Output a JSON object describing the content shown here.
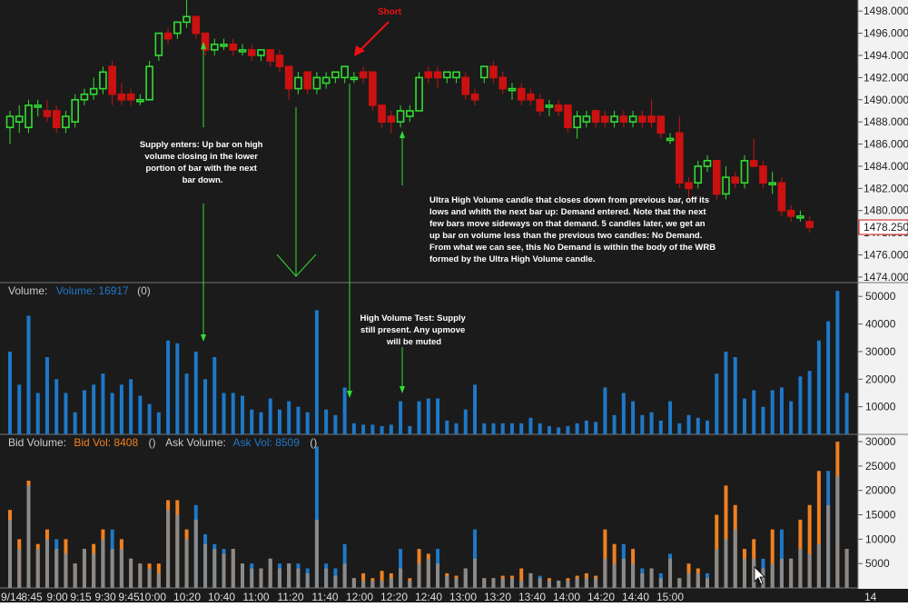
{
  "chart_data": [
    {
      "type": "candlestick",
      "name_text": "",
      "ylim": [
        1473.5,
        1499
      ],
      "y_ticks": [
        1474,
        1476,
        1478,
        1480,
        1482,
        1484,
        1486,
        1488,
        1490,
        1492,
        1494,
        1496,
        1498
      ],
      "y_tick_labels": [
        "1474.000",
        "1476.000",
        "1478.000",
        "1480.000",
        "1482.000",
        "1484.000",
        "1486.000",
        "1488.000",
        "1490.000",
        "1492.000",
        "1494.000",
        "1496.000",
        "1498.000"
      ],
      "last_price_label": "1478.250",
      "candles": [
        {
          "o": 1487.5,
          "h": 1489.0,
          "l": 1486.0,
          "c": 1488.5
        },
        {
          "o": 1488.0,
          "h": 1489.5,
          "l": 1487.0,
          "c": 1488.5
        },
        {
          "o": 1487.5,
          "h": 1490.0,
          "l": 1487.0,
          "c": 1489.5
        },
        {
          "o": 1489.5,
          "h": 1490.0,
          "l": 1488.5,
          "c": 1489.5
        },
        {
          "o": 1489.0,
          "h": 1490.0,
          "l": 1488.0,
          "c": 1488.5
        },
        {
          "o": 1489.0,
          "h": 1489.5,
          "l": 1487.0,
          "c": 1487.5
        },
        {
          "o": 1487.5,
          "h": 1489.0,
          "l": 1487.0,
          "c": 1488.5
        },
        {
          "o": 1488.0,
          "h": 1490.5,
          "l": 1487.5,
          "c": 1490.0
        },
        {
          "o": 1490.0,
          "h": 1491.0,
          "l": 1489.5,
          "c": 1490.5
        },
        {
          "o": 1490.5,
          "h": 1492.0,
          "l": 1490.0,
          "c": 1491.0
        },
        {
          "o": 1491.0,
          "h": 1493.0,
          "l": 1490.5,
          "c": 1492.5
        },
        {
          "o": 1493.0,
          "h": 1493.5,
          "l": 1489.5,
          "c": 1490.5
        },
        {
          "o": 1490.5,
          "h": 1491.5,
          "l": 1489.5,
          "c": 1490.0
        },
        {
          "o": 1490.5,
          "h": 1491.0,
          "l": 1489.5,
          "c": 1490.0
        },
        {
          "o": 1490.0,
          "h": 1490.5,
          "l": 1489.5,
          "c": 1490.0
        },
        {
          "o": 1490.0,
          "h": 1493.5,
          "l": 1490.0,
          "c": 1493.0
        },
        {
          "o": 1494.0,
          "h": 1496.0,
          "l": 1493.5,
          "c": 1496.0
        },
        {
          "o": 1496.0,
          "h": 1496.5,
          "l": 1495.0,
          "c": 1495.5
        },
        {
          "o": 1496.0,
          "h": 1497.0,
          "l": 1495.5,
          "c": 1497.0
        },
        {
          "o": 1497.0,
          "h": 1499.0,
          "l": 1496.5,
          "c": 1497.5
        },
        {
          "o": 1497.5,
          "h": 1497.5,
          "l": 1495.5,
          "c": 1496.0
        },
        {
          "o": 1496.0,
          "h": 1496.0,
          "l": 1494.0,
          "c": 1494.5
        },
        {
          "o": 1494.5,
          "h": 1495.5,
          "l": 1494.0,
          "c": 1495.0
        },
        {
          "o": 1495.0,
          "h": 1495.5,
          "l": 1494.5,
          "c": 1495.0
        },
        {
          "o": 1495.0,
          "h": 1495.5,
          "l": 1494.0,
          "c": 1494.5
        },
        {
          "o": 1494.5,
          "h": 1495.0,
          "l": 1494.0,
          "c": 1494.5
        },
        {
          "o": 1494.5,
          "h": 1495.0,
          "l": 1493.5,
          "c": 1494.0
        },
        {
          "o": 1494.0,
          "h": 1494.5,
          "l": 1493.5,
          "c": 1494.5
        },
        {
          "o": 1494.5,
          "h": 1494.5,
          "l": 1493.0,
          "c": 1493.5
        },
        {
          "o": 1494.0,
          "h": 1494.5,
          "l": 1492.5,
          "c": 1493.0
        },
        {
          "o": 1493.0,
          "h": 1493.0,
          "l": 1490.0,
          "c": 1491.0
        },
        {
          "o": 1491.0,
          "h": 1492.5,
          "l": 1490.5,
          "c": 1492.0
        },
        {
          "o": 1492.5,
          "h": 1492.5,
          "l": 1490.5,
          "c": 1491.0
        },
        {
          "o": 1491.0,
          "h": 1492.5,
          "l": 1490.5,
          "c": 1492.0
        },
        {
          "o": 1491.5,
          "h": 1492.5,
          "l": 1491.0,
          "c": 1492.0
        },
        {
          "o": 1492.0,
          "h": 1492.5,
          "l": 1491.5,
          "c": 1492.5
        },
        {
          "o": 1492.0,
          "h": 1493.0,
          "l": 1491.5,
          "c": 1493.0
        },
        {
          "o": 1492.0,
          "h": 1492.5,
          "l": 1491.5,
          "c": 1492.0
        },
        {
          "o": 1492.5,
          "h": 1493.0,
          "l": 1491.5,
          "c": 1492.0
        },
        {
          "o": 1492.5,
          "h": 1492.5,
          "l": 1489.0,
          "c": 1489.5
        },
        {
          "o": 1489.5,
          "h": 1489.5,
          "l": 1487.5,
          "c": 1488.0
        },
        {
          "o": 1488.5,
          "h": 1489.0,
          "l": 1487.0,
          "c": 1488.0
        },
        {
          "o": 1488.0,
          "h": 1489.5,
          "l": 1487.5,
          "c": 1489.0
        },
        {
          "o": 1488.5,
          "h": 1489.5,
          "l": 1488.0,
          "c": 1489.0
        },
        {
          "o": 1489.0,
          "h": 1492.5,
          "l": 1489.0,
          "c": 1492.0
        },
        {
          "o": 1492.5,
          "h": 1493.0,
          "l": 1491.5,
          "c": 1492.0
        },
        {
          "o": 1492.5,
          "h": 1493.0,
          "l": 1491.0,
          "c": 1492.0
        },
        {
          "o": 1492.0,
          "h": 1492.5,
          "l": 1491.5,
          "c": 1492.5
        },
        {
          "o": 1492.0,
          "h": 1492.5,
          "l": 1491.5,
          "c": 1492.5
        },
        {
          "o": 1492.0,
          "h": 1492.5,
          "l": 1490.0,
          "c": 1490.5
        },
        {
          "o": 1490.5,
          "h": 1491.0,
          "l": 1489.5,
          "c": 1490.0
        },
        {
          "o": 1492.0,
          "h": 1493.0,
          "l": 1491.5,
          "c": 1493.0
        },
        {
          "o": 1493.0,
          "h": 1493.5,
          "l": 1491.5,
          "c": 1492.0
        },
        {
          "o": 1492.0,
          "h": 1492.5,
          "l": 1490.5,
          "c": 1491.0
        },
        {
          "o": 1491.0,
          "h": 1491.5,
          "l": 1490.0,
          "c": 1491.0
        },
        {
          "o": 1491.0,
          "h": 1491.5,
          "l": 1489.5,
          "c": 1490.0
        },
        {
          "o": 1490.5,
          "h": 1491.0,
          "l": 1489.5,
          "c": 1490.0
        },
        {
          "o": 1490.0,
          "h": 1490.5,
          "l": 1488.5,
          "c": 1489.0
        },
        {
          "o": 1489.5,
          "h": 1490.0,
          "l": 1488.5,
          "c": 1489.5
        },
        {
          "o": 1489.5,
          "h": 1490.0,
          "l": 1488.5,
          "c": 1489.0
        },
        {
          "o": 1489.5,
          "h": 1489.5,
          "l": 1487.0,
          "c": 1487.5
        },
        {
          "o": 1487.5,
          "h": 1489.0,
          "l": 1486.5,
          "c": 1488.5
        },
        {
          "o": 1488.0,
          "h": 1489.0,
          "l": 1487.5,
          "c": 1488.5
        },
        {
          "o": 1489.0,
          "h": 1489.0,
          "l": 1487.5,
          "c": 1488.0
        },
        {
          "o": 1488.5,
          "h": 1489.0,
          "l": 1487.5,
          "c": 1488.0
        },
        {
          "o": 1488.0,
          "h": 1489.0,
          "l": 1487.5,
          "c": 1488.5
        },
        {
          "o": 1488.5,
          "h": 1489.0,
          "l": 1487.5,
          "c": 1488.0
        },
        {
          "o": 1488.0,
          "h": 1489.0,
          "l": 1487.5,
          "c": 1488.5
        },
        {
          "o": 1488.5,
          "h": 1489.0,
          "l": 1487.5,
          "c": 1488.0
        },
        {
          "o": 1488.5,
          "h": 1490.0,
          "l": 1487.5,
          "c": 1488.0
        },
        {
          "o": 1488.5,
          "h": 1488.5,
          "l": 1486.5,
          "c": 1487.0
        },
        {
          "o": 1486.5,
          "h": 1487.0,
          "l": 1486.0,
          "c": 1486.5
        },
        {
          "o": 1487.0,
          "h": 1488.5,
          "l": 1482.0,
          "c": 1482.5
        },
        {
          "o": 1482.5,
          "h": 1483.0,
          "l": 1481.0,
          "c": 1482.0
        },
        {
          "o": 1482.5,
          "h": 1484.5,
          "l": 1482.0,
          "c": 1484.0
        },
        {
          "o": 1484.0,
          "h": 1485.0,
          "l": 1483.5,
          "c": 1484.5
        },
        {
          "o": 1484.5,
          "h": 1484.5,
          "l": 1481.0,
          "c": 1481.5
        },
        {
          "o": 1481.5,
          "h": 1484.0,
          "l": 1481.0,
          "c": 1483.0
        },
        {
          "o": 1483.0,
          "h": 1483.5,
          "l": 1482.0,
          "c": 1482.5
        },
        {
          "o": 1482.5,
          "h": 1485.0,
          "l": 1482.0,
          "c": 1484.5
        },
        {
          "o": 1484.5,
          "h": 1486.5,
          "l": 1484.0,
          "c": 1484.0
        },
        {
          "o": 1484.0,
          "h": 1484.5,
          "l": 1482.0,
          "c": 1482.5
        },
        {
          "o": 1482.5,
          "h": 1483.5,
          "l": 1481.5,
          "c": 1482.5
        },
        {
          "o": 1482.5,
          "h": 1483.0,
          "l": 1479.5,
          "c": 1480.0
        },
        {
          "o": 1480.0,
          "h": 1480.5,
          "l": 1479.0,
          "c": 1479.5
        },
        {
          "o": 1479.5,
          "h": 1480.0,
          "l": 1479.0,
          "c": 1479.5
        },
        {
          "o": 1479.0,
          "h": 1479.5,
          "l": 1478.0,
          "c": 1478.5
        }
      ],
      "colors": {
        "up": "#33dd33",
        "down": "#cc1111",
        "wick": "#888888"
      }
    },
    {
      "type": "bar",
      "ylim": [
        0,
        55000
      ],
      "y_ticks": [
        10000,
        20000,
        30000,
        40000,
        50000
      ],
      "y_tick_labels": [
        "10000",
        "20000",
        "30000",
        "40000",
        "50000"
      ],
      "legend": {
        "label": "Volume:",
        "series": "Volume: 16917",
        "extra": "(0)"
      },
      "values": [
        30000,
        18000,
        43000,
        15000,
        28000,
        20000,
        15000,
        8000,
        16000,
        18000,
        22000,
        15000,
        18000,
        20000,
        14000,
        11000,
        8000,
        34000,
        33000,
        22000,
        30000,
        20000,
        28000,
        15000,
        15000,
        14000,
        9000,
        8000,
        13000,
        9000,
        12000,
        10000,
        8000,
        45000,
        9000,
        7000,
        17000,
        4000,
        3500,
        3500,
        3000,
        3500,
        12000,
        3000,
        12000,
        13000,
        13000,
        5000,
        4000,
        9000,
        18000,
        4000,
        4000,
        4000,
        4000,
        4000,
        6000,
        4000,
        3000,
        2500,
        3000,
        4000,
        5000,
        4500,
        17000,
        7000,
        15000,
        12000,
        7000,
        8000,
        5000,
        12000,
        4000,
        7000,
        6000,
        5000,
        22000,
        30000,
        28000,
        13000,
        16000,
        10000,
        16000,
        17000,
        12000,
        21000,
        23000,
        34000,
        41000,
        52000,
        15000
      ],
      "color": "#1e78c8"
    },
    {
      "type": "bar",
      "ylim": [
        0,
        31500
      ],
      "y_ticks": [
        5000,
        10000,
        15000,
        20000,
        25000,
        30000
      ],
      "y_tick_labels": [
        "5000",
        "10000",
        "15000",
        "20000",
        "25000",
        "30000"
      ],
      "legend": {
        "bid_label": "Bid Volume:",
        "bid_series": "Bid Vol: 8408",
        "bid_extra": "()",
        "ask_label": "Ask Volume:",
        "ask_series": "Ask Vol: 8509",
        "ask_extra": "()"
      },
      "series": [
        {
          "name": "Bid Vol: 8408",
          "color": "#f08020",
          "values": [
            16000,
            10000,
            22000,
            9000,
            12000,
            8000,
            10000,
            5000,
            8000,
            9000,
            12000,
            8000,
            10000,
            6000,
            5000,
            5000,
            5000,
            18000,
            18000,
            12000,
            14000,
            9000,
            8000,
            7000,
            8000,
            5000,
            4000,
            4000,
            6000,
            4000,
            5000,
            4000,
            3000,
            14000,
            4000,
            2500,
            5000,
            2000,
            3000,
            2000,
            3500,
            3000,
            4000,
            2000,
            8000,
            7000,
            5000,
            3000,
            2500,
            4000,
            6000,
            2000,
            2000,
            2500,
            2500,
            4000,
            3000,
            2000,
            2000,
            1500,
            2000,
            2500,
            3000,
            2500,
            12000,
            9000,
            6000,
            8000,
            3000,
            4000,
            2000,
            6000,
            2000,
            5000,
            4000,
            2000,
            15000,
            21000,
            17000,
            8000,
            10000,
            4000,
            12000,
            6000,
            6000,
            14000,
            17000,
            24000,
            17000,
            30000,
            8000
          ]
        },
        {
          "name": "Ask Vol: 8509",
          "color": "#1e78c8",
          "values": [
            14000,
            8000,
            21000,
            8000,
            10000,
            10000,
            7000,
            5000,
            8000,
            7000,
            10000,
            12000,
            8000,
            6000,
            5000,
            4000,
            3000,
            16000,
            15000,
            10000,
            17000,
            11000,
            9000,
            8000,
            8000,
            5000,
            5000,
            4000,
            6000,
            5000,
            5000,
            5000,
            4000,
            29000,
            5000,
            4000,
            9000,
            2000,
            1500,
            1500,
            1500,
            2000,
            8000,
            1500,
            5000,
            6000,
            8000,
            2500,
            2000,
            4000,
            12000,
            2000,
            2000,
            2000,
            2000,
            1500,
            3000,
            2500,
            1500,
            1500,
            1500,
            2000,
            2000,
            2000,
            6000,
            5000,
            9000,
            5000,
            4000,
            4000,
            3000,
            7000,
            2000,
            3000,
            3000,
            3000,
            8000,
            10000,
            12000,
            6000,
            6000,
            6000,
            5000,
            12000,
            6000,
            8000,
            7000,
            9000,
            24000,
            23000,
            8000
          ]
        }
      ],
      "overlap_color": "#8a8a8a"
    }
  ],
  "time_axis": {
    "labels": [
      "9/14",
      "8:45",
      "9:00",
      "9:15",
      "9:30",
      "9:45",
      "10:00",
      "10:20",
      "10:40",
      "11:00",
      "11:20",
      "11:40",
      "12:00",
      "12:20",
      "12:40",
      "13:00",
      "13:20",
      "13:40",
      "14:00",
      "14:20",
      "14:40",
      "15:00"
    ],
    "right_label": "14"
  },
  "annotations": {
    "short": "Short",
    "supply_enters": [
      "Supply enters: Up bar on high",
      "volume closing in the lower",
      "portion of bar with the next",
      "bar down."
    ],
    "ultra_high": [
      "Ultra High Volume candle that closes down from previous bar, off its",
      "lows and whith the next bar up: Demand entered. Note that the next",
      "few bars move sideways on that demand. 5 candles later, we get an",
      "up bar on volume less than the previous two candles: No Demand.",
      "From what we can see, this No Demand is within the body of the WRB",
      "formed by the Ultra High Volume candle."
    ],
    "high_volume_test": [
      "High Volume Test: Supply",
      "still present. Any upmove",
      "will be muted"
    ]
  },
  "colors": {
    "background": "#1b1b1b",
    "axis_panel": "#f2f2f2",
    "grid": "#333333",
    "annotation_arrow": "#33dd33",
    "short_color": "#ee1111",
    "bid": "#f08020",
    "ask": "#1e78c8"
  }
}
